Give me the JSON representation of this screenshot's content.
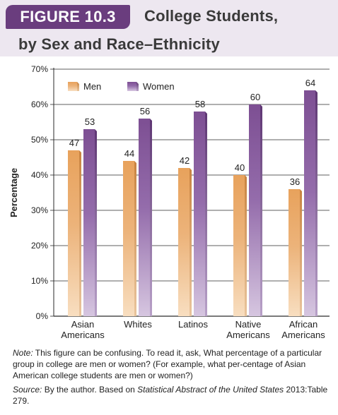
{
  "figure": {
    "label": "FIGURE 10.3",
    "title_line1": "College Students,",
    "title_line2": "by Sex and Race–Ethnicity"
  },
  "colors": {
    "header_band": "#ede7f0",
    "figure_label_bg": "#6a3d7e",
    "men": "#e8a25c",
    "women": "#7d4f93"
  },
  "chart_data": {
    "type": "bar",
    "ylabel": "Percentage",
    "ylim": [
      0,
      70
    ],
    "yticks": [
      "0%",
      "10%",
      "20%",
      "30%",
      "40%",
      "50%",
      "60%",
      "70%"
    ],
    "grid": true,
    "legend_position": "top-left",
    "categories": [
      [
        "Asian",
        "Americans"
      ],
      [
        "Whites"
      ],
      [
        "Latinos"
      ],
      [
        "Native",
        "Americans"
      ],
      [
        "African",
        "Americans"
      ]
    ],
    "series": [
      {
        "name": "Men",
        "values": [
          47,
          44,
          42,
          40,
          36
        ]
      },
      {
        "name": "Women",
        "values": [
          53,
          56,
          58,
          60,
          64
        ]
      }
    ]
  },
  "notes": {
    "note_label": "Note:",
    "note_text": " This figure can be confusing. To read it, ask, What percentage of a particular group in college are men or women? (For example, what per-centage of Asian American college students are men or women?)",
    "source_label": "Source:",
    "source_text": " By the author. Based on ",
    "source_title": "Statistical Abstract of the United States",
    "source_tail": " 2013:Table 279."
  }
}
